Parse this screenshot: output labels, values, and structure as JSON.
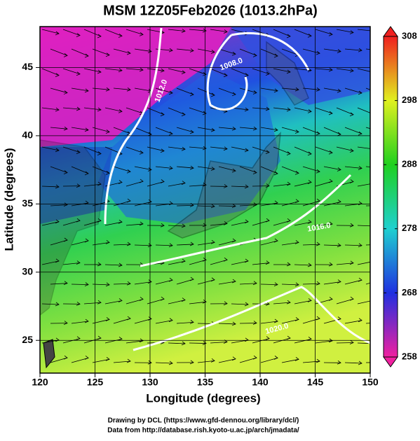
{
  "title": "MSM 12Z05Feb2026 (1013.2hPa)",
  "map": {
    "xlabel": "Longitude (degrees)",
    "ylabel": "Latitude  (degrees)",
    "xlim": [
      120,
      150
    ],
    "ylim": [
      22.6,
      48
    ],
    "xticks": [
      120,
      125,
      130,
      135,
      140,
      145,
      150
    ],
    "yticks": [
      25,
      30,
      35,
      40,
      45
    ],
    "contour_labels": [
      "1008.0",
      "1012.0",
      "1016.0",
      "1020.0"
    ]
  },
  "colorbar": {
    "lim": [
      258,
      308
    ],
    "ticks": [
      258,
      268,
      278,
      288,
      298,
      308
    ]
  },
  "credits": [
    "Drawing by DCL (https://www.gfd-dennou.org/library/dcl/)",
    "Data from http://database.rish.kyoto-u.ac.jp/arch/jmadata/"
  ]
}
